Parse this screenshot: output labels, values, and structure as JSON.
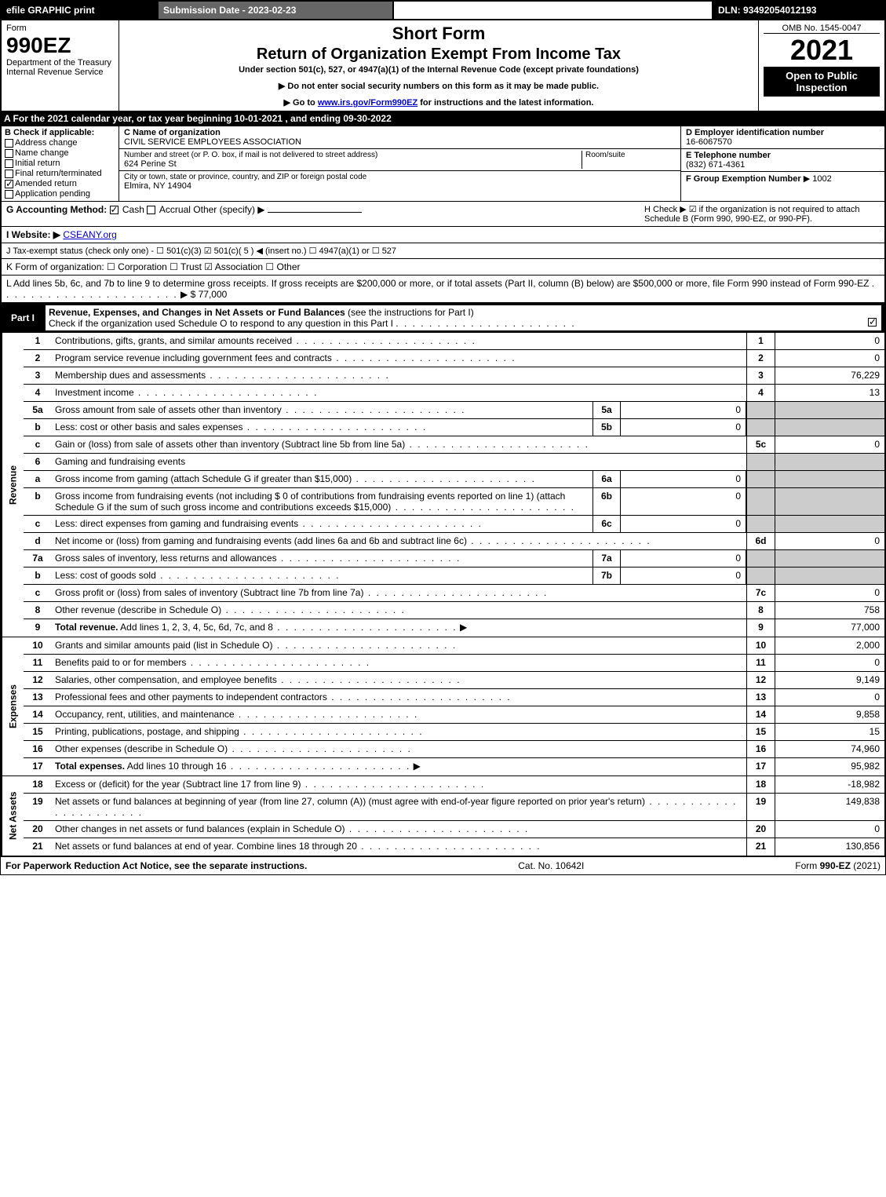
{
  "topbar": {
    "efile": "efile GRAPHIC print",
    "subdate": "Submission Date - 2023-02-23",
    "dln": "DLN: 93492054012193"
  },
  "header": {
    "form_label": "Form",
    "form_no": "990EZ",
    "dept1": "Department of the Treasury",
    "dept2": "Internal Revenue Service",
    "short": "Short Form",
    "return": "Return of Organization Exempt From Income Tax",
    "under": "Under section 501(c), 527, or 4947(a)(1) of the Internal Revenue Code (except private foundations)",
    "ssn": "▶ Do not enter social security numbers on this form as it may be made public.",
    "goto_pre": "▶ Go to ",
    "goto_link": "www.irs.gov/Form990EZ",
    "goto_post": " for instructions and the latest information.",
    "omb": "OMB No. 1545-0047",
    "year": "2021",
    "open": "Open to Public Inspection"
  },
  "A": "A  For the 2021 calendar year, or tax year beginning 10-01-2021 , and ending 09-30-2022",
  "B": {
    "title": "B  Check if applicable:",
    "opts": {
      "address": {
        "label": "Address change",
        "checked": false
      },
      "name": {
        "label": "Name change",
        "checked": false
      },
      "initial": {
        "label": "Initial return",
        "checked": false
      },
      "final": {
        "label": "Final return/terminated",
        "checked": false
      },
      "amended": {
        "label": "Amended return",
        "checked": true
      },
      "pending": {
        "label": "Application pending",
        "checked": false
      }
    }
  },
  "C": {
    "label": "C Name of organization",
    "name": "CIVIL SERVICE EMPLOYEES ASSOCIATION",
    "street_label": "Number and street (or P. O. box, if mail is not delivered to street address)",
    "room_label": "Room/suite",
    "street": "624 Perine St",
    "city_label": "City or town, state or province, country, and ZIP or foreign postal code",
    "city": "Elmira, NY  14904"
  },
  "D": {
    "label": "D Employer identification number",
    "value": "16-6067570"
  },
  "E": {
    "label": "E Telephone number",
    "value": "(832) 671-4361"
  },
  "F": {
    "label": "F Group Exemption Number",
    "value": "▶ 1002"
  },
  "G": {
    "label": "G Accounting Method:",
    "cash": {
      "label": "Cash",
      "checked": true
    },
    "accrual": {
      "label": "Accrual",
      "checked": false
    },
    "other": "Other (specify) ▶"
  },
  "H": "H   Check ▶ ☑ if the organization is not required to attach Schedule B (Form 990, 990-EZ, or 990-PF).",
  "I": {
    "label": "I Website: ▶",
    "value": "CSEANY.org"
  },
  "J": "J Tax-exempt status (check only one) - ☐ 501(c)(3) ☑ 501(c)( 5 ) ◀ (insert no.) ☐ 4947(a)(1) or ☐ 527",
  "K": "K Form of organization:  ☐ Corporation  ☐ Trust  ☑ Association  ☐ Other",
  "L": {
    "text": "L Add lines 5b, 6c, and 7b to line 9 to determine gross receipts. If gross receipts are $200,000 or more, or if total assets (Part II, column (B) below) are $500,000 or more, file Form 990 instead of Form 990-EZ",
    "val": "▶ $ 77,000"
  },
  "partI": {
    "title_label": "Part I",
    "title_bold": "Revenue, Expenses, and Changes in Net Assets or Fund Balances",
    "title_rest": " (see the instructions for Part I)",
    "checkO": "Check if the organization used Schedule O to respond to any question in this Part I",
    "checkO_checked": true,
    "side_revenue": "Revenue",
    "side_expenses": "Expenses",
    "side_net": "Net Assets",
    "lines": [
      {
        "no": "1",
        "desc": "Contributions, gifts, grants, and similar amounts received",
        "ref": "1",
        "val": "0"
      },
      {
        "no": "2",
        "desc": "Program service revenue including government fees and contracts",
        "ref": "2",
        "val": "0"
      },
      {
        "no": "3",
        "desc": "Membership dues and assessments",
        "ref": "3",
        "val": "76,229"
      },
      {
        "no": "4",
        "desc": "Investment income",
        "ref": "4",
        "val": "13"
      },
      {
        "no": "5a",
        "desc": "Gross amount from sale of assets other than inventory",
        "sub": "5a",
        "subval": "0",
        "shade": true
      },
      {
        "no": "b",
        "desc": "Less: cost or other basis and sales expenses",
        "sub": "5b",
        "subval": "0",
        "shade": true
      },
      {
        "no": "c",
        "desc": "Gain or (loss) from sale of assets other than inventory (Subtract line 5b from line 5a)",
        "ref": "5c",
        "val": "0"
      },
      {
        "no": "6",
        "desc": "Gaming and fundraising events",
        "shade": true
      },
      {
        "no": "a",
        "desc": "Gross income from gaming (attach Schedule G if greater than $15,000)",
        "sub": "6a",
        "subval": "0",
        "shade": true
      },
      {
        "no": "b",
        "desc": "Gross income from fundraising events (not including $  0           of contributions from fundraising events reported on line 1) (attach Schedule G if the sum of such gross income and contributions exceeds $15,000)",
        "sub": "6b",
        "subval": "0",
        "shade": true
      },
      {
        "no": "c",
        "desc": "Less: direct expenses from gaming and fundraising events",
        "sub": "6c",
        "subval": "0",
        "shade": true
      },
      {
        "no": "d",
        "desc": "Net income or (loss) from gaming and fundraising events (add lines 6a and 6b and subtract line 6c)",
        "ref": "6d",
        "val": "0"
      },
      {
        "no": "7a",
        "desc": "Gross sales of inventory, less returns and allowances",
        "sub": "7a",
        "subval": "0",
        "shade": true
      },
      {
        "no": "b",
        "desc": "Less: cost of goods sold",
        "sub": "7b",
        "subval": "0",
        "shade": true
      },
      {
        "no": "c",
        "desc": "Gross profit or (loss) from sales of inventory (Subtract line 7b from line 7a)",
        "ref": "7c",
        "val": "0"
      },
      {
        "no": "8",
        "desc": "Other revenue (describe in Schedule O)",
        "ref": "8",
        "val": "758"
      },
      {
        "no": "9",
        "desc_b": "Total revenue.",
        "desc": " Add lines 1, 2, 3, 4, 5c, 6d, 7c, and 8",
        "arrow": true,
        "ref": "9",
        "val": "77,000"
      }
    ],
    "exp_lines": [
      {
        "no": "10",
        "desc": "Grants and similar amounts paid (list in Schedule O)",
        "ref": "10",
        "val": "2,000"
      },
      {
        "no": "11",
        "desc": "Benefits paid to or for members",
        "ref": "11",
        "val": "0"
      },
      {
        "no": "12",
        "desc": "Salaries, other compensation, and employee benefits",
        "ref": "12",
        "val": "9,149"
      },
      {
        "no": "13",
        "desc": "Professional fees and other payments to independent contractors",
        "ref": "13",
        "val": "0"
      },
      {
        "no": "14",
        "desc": "Occupancy, rent, utilities, and maintenance",
        "ref": "14",
        "val": "9,858"
      },
      {
        "no": "15",
        "desc": "Printing, publications, postage, and shipping",
        "ref": "15",
        "val": "15"
      },
      {
        "no": "16",
        "desc": "Other expenses (describe in Schedule O)",
        "ref": "16",
        "val": "74,960"
      },
      {
        "no": "17",
        "desc_b": "Total expenses.",
        "desc": " Add lines 10 through 16",
        "arrow": true,
        "ref": "17",
        "val": "95,982"
      }
    ],
    "net_lines": [
      {
        "no": "18",
        "desc": "Excess or (deficit) for the year (Subtract line 17 from line 9)",
        "ref": "18",
        "val": "-18,982"
      },
      {
        "no": "19",
        "desc": "Net assets or fund balances at beginning of year (from line 27, column (A)) (must agree with end-of-year figure reported on prior year's return)",
        "ref": "19",
        "val": "149,838"
      },
      {
        "no": "20",
        "desc": "Other changes in net assets or fund balances (explain in Schedule O)",
        "ref": "20",
        "val": "0"
      },
      {
        "no": "21",
        "desc": "Net assets or fund balances at end of year. Combine lines 18 through 20",
        "ref": "21",
        "val": "130,856"
      }
    ]
  },
  "footer": {
    "left": "For Paperwork Reduction Act Notice, see the separate instructions.",
    "mid": "Cat. No. 10642I",
    "right_pre": "Form ",
    "right_b": "990-EZ",
    "right_post": " (2021)"
  },
  "colors": {
    "black": "#000000",
    "white": "#ffffff",
    "gray": "#cccccc",
    "darkgray": "#666666",
    "link": "#0000cc"
  }
}
